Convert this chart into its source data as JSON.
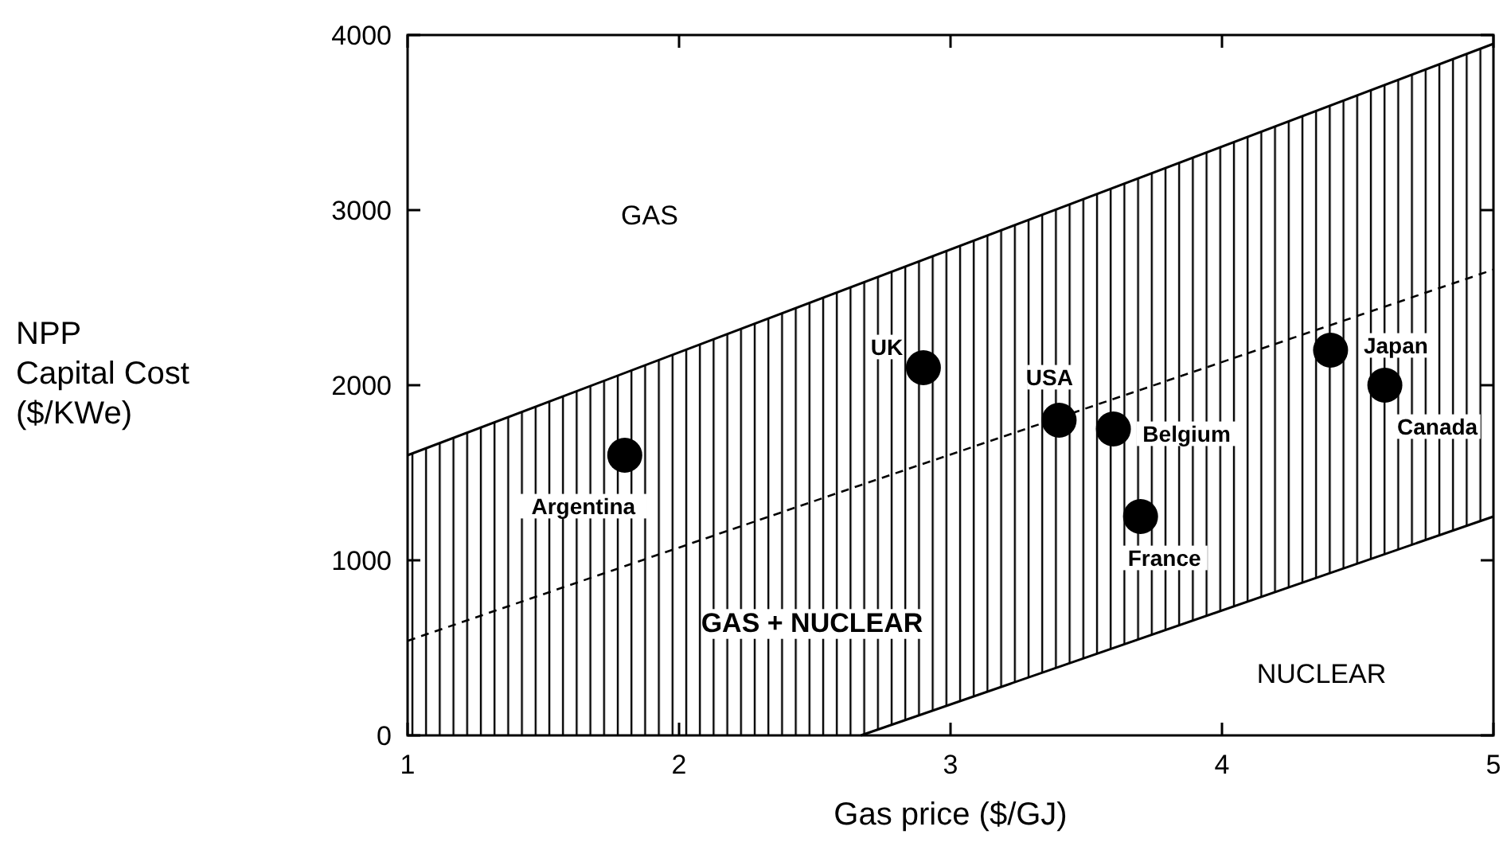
{
  "chart_data": {
    "type": "scatter",
    "xlabel": "Gas price ($/GJ)",
    "ylabel": "NPP\nCapital Cost\n($/KWe)",
    "xlim": [
      1,
      5
    ],
    "ylim": [
      0,
      4000
    ],
    "xticks": [
      1,
      2,
      3,
      4,
      5
    ],
    "yticks": [
      0,
      1000,
      2000,
      3000,
      4000
    ],
    "grid": false,
    "series": [
      {
        "type": "line",
        "line_style": "solid",
        "color": "#000000",
        "x": [
          1,
          5
        ],
        "values": [
          1600,
          3950
        ]
      },
      {
        "type": "line",
        "line_style": "dashed",
        "color": "#000000",
        "x": [
          1,
          2.67,
          5
        ],
        "values": [
          540,
          1430,
          2660
        ],
        "lower": [
          0,
          0,
          1250
        ],
        "upper": [
          1600,
          2580,
          3950
        ]
      },
      {
        "type": "line",
        "line_style": "solid",
        "color": "#000000",
        "x": [
          2.67,
          5
        ],
        "values": [
          0,
          1250
        ]
      },
      {
        "marker": "circle",
        "color": "#000000",
        "x": [
          1.8,
          2.9,
          3.4,
          3.6,
          3.7,
          4.4,
          4.6
        ],
        "values": [
          1600,
          2100,
          1800,
          1750,
          1250,
          2200,
          2000
        ]
      }
    ],
    "annotations": [
      {
        "text": "Argentina",
        "x": 1.8,
        "y": 1600
      },
      {
        "text": "UK",
        "x": 2.9,
        "y": 2100
      },
      {
        "text": "USA",
        "x": 3.4,
        "y": 1800
      },
      {
        "text": "Belgium",
        "x": 3.6,
        "y": 1750
      },
      {
        "text": "France",
        "x": 3.7,
        "y": 1250
      },
      {
        "text": "Japan",
        "x": 4.4,
        "y": 2200
      },
      {
        "text": "Canada",
        "x": 4.6,
        "y": 2000
      },
      "GAS + NUCLEAR",
      "GAS",
      "NUCLEAR"
    ]
  }
}
